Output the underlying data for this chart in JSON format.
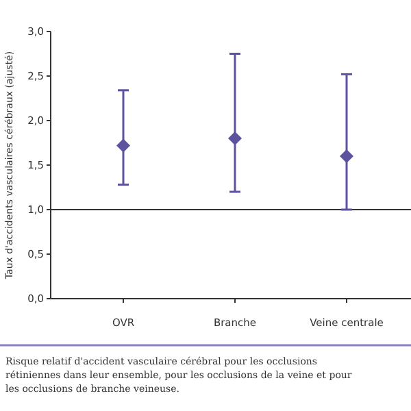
{
  "chart_data": {
    "type": "scatter",
    "ylabel": "Taux d'accidents vasculaires cérébraux (ajusté)",
    "categories": [
      "OVR",
      "Branche",
      "Veine centrale"
    ],
    "values": [
      1.72,
      1.8,
      1.6
    ],
    "errors": [
      [
        1.28,
        2.34
      ],
      [
        1.2,
        2.75
      ],
      [
        1.0,
        2.52
      ]
    ],
    "color": "#5d529e",
    "marker": "diamond",
    "ylim": [
      0,
      3
    ],
    "yticks": [
      {
        "value": 0,
        "label": "0,0"
      },
      {
        "value": 0.5,
        "label": "0,5"
      },
      {
        "value": 1,
        "label": "1,0"
      },
      {
        "value": 1.5,
        "label": "1,5"
      },
      {
        "value": 2,
        "label": "2,0"
      },
      {
        "value": 2.5,
        "label": "2,5"
      },
      {
        "value": 3,
        "label": "3,0"
      }
    ],
    "ref_lines": [
      {
        "axis": "y",
        "value": 1.0
      }
    ],
    "annotations": [
      "Risque relatif d'accident vasculaire cérébral pour les occlusions rétiniennes dans leur ensemble, pour les occlusions de la veine et pour les occlusions de branche veineuse."
    ]
  }
}
